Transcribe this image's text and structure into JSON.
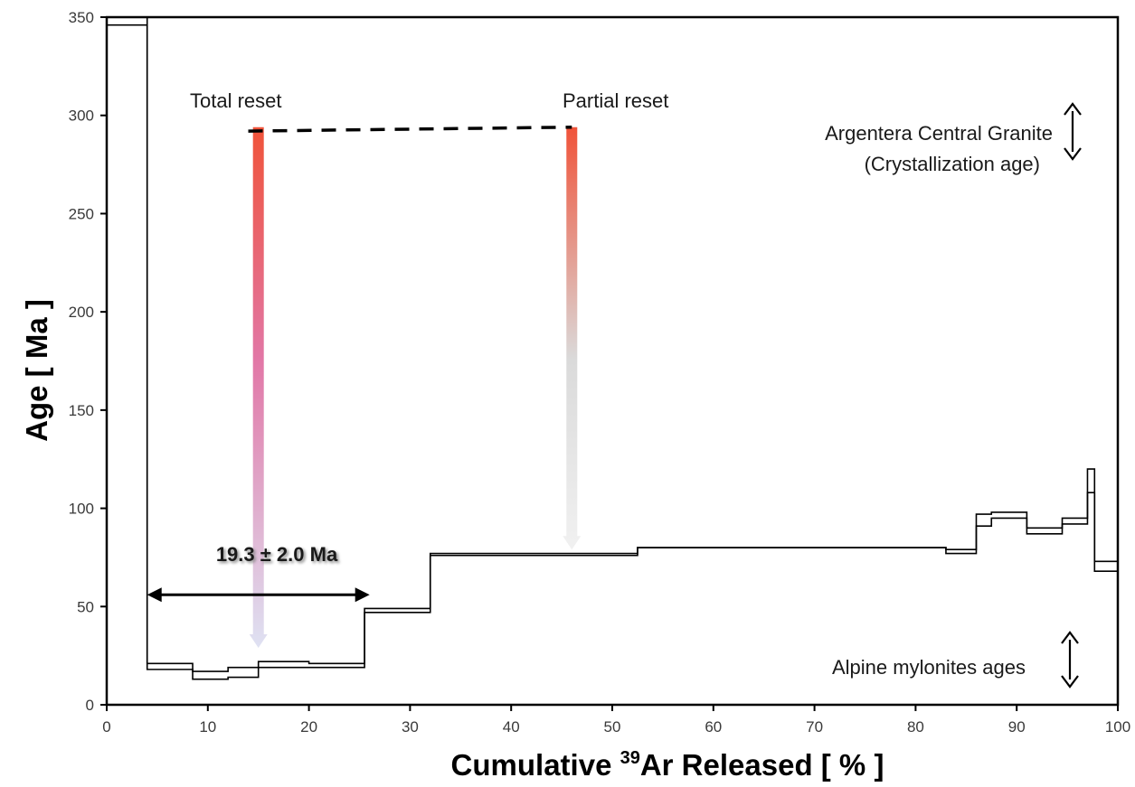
{
  "chart_data": {
    "type": "line",
    "subtype": "step-spectrum",
    "xlabel": {
      "pre": "Cumulative ",
      "sup": "39",
      "post": "Ar Released [ % ]"
    },
    "ylabel": "Age [ Ma ]",
    "xlim": [
      0,
      100
    ],
    "ylim": [
      0,
      350
    ],
    "xticks": [
      "0",
      "10",
      "20",
      "30",
      "40",
      "50",
      "60",
      "70",
      "80",
      "90",
      "100"
    ],
    "yticks": [
      "0",
      "50",
      "100",
      "150",
      "200",
      "250",
      "300",
      "350"
    ],
    "grid": false,
    "steps": [
      {
        "x0": 0,
        "x1": 4,
        "lo": 346,
        "hi": 350
      },
      {
        "x0": 4,
        "x1": 8.5,
        "lo": 18,
        "hi": 21
      },
      {
        "x0": 8.5,
        "x1": 12,
        "lo": 13,
        "hi": 17
      },
      {
        "x0": 12,
        "x1": 15,
        "lo": 14,
        "hi": 19
      },
      {
        "x0": 15,
        "x1": 20,
        "lo": 19,
        "hi": 22
      },
      {
        "x0": 20,
        "x1": 25.5,
        "lo": 19,
        "hi": 21
      },
      {
        "x0": 25.5,
        "x1": 32,
        "lo": 47,
        "hi": 49
      },
      {
        "x0": 32,
        "x1": 52.5,
        "lo": 76,
        "hi": 77
      },
      {
        "x0": 52.5,
        "x1": 83,
        "lo": 80,
        "hi": 80
      },
      {
        "x0": 83,
        "x1": 86,
        "lo": 77,
        "hi": 79
      },
      {
        "x0": 86,
        "x1": 87.5,
        "lo": 91,
        "hi": 97
      },
      {
        "x0": 87.5,
        "x1": 91,
        "lo": 95,
        "hi": 98
      },
      {
        "x0": 91,
        "x1": 94.5,
        "lo": 87,
        "hi": 90
      },
      {
        "x0": 94.5,
        "x1": 97,
        "lo": 92,
        "hi": 95
      },
      {
        "x0": 97,
        "x1": 97.7,
        "lo": 108,
        "hi": 120
      },
      {
        "x0": 97.7,
        "x1": 100,
        "lo": 68,
        "hi": 73
      }
    ],
    "annotations": {
      "total_reset": "Total reset",
      "partial_reset": "Partial reset",
      "granite_line1": "Argentera Central Granite",
      "granite_line2": "(Crystallization age)",
      "alpine": "Alpine mylonites ages",
      "plateau_age": "19.3 ± 2.0 Ma"
    },
    "reset_arrows": [
      {
        "x": 15,
        "top": 294,
        "bottom": 29
      },
      {
        "x": 46,
        "top": 294,
        "bottom": 79
      }
    ],
    "plateau_range": [
      4,
      26
    ],
    "plateau_arrow_y": 56,
    "dashed_line": {
      "x0": 14,
      "y0": 292,
      "x1": 46,
      "y1": 294
    },
    "colors": {
      "line": "#000000",
      "reset_top": "#ef4a2f",
      "reset_mid_total": "#e070a2",
      "reset_bottom_total": "#dde0f2",
      "reset_mid_partial": "#d8d8d8",
      "reset_bottom_partial": "#f0f0f0"
    }
  }
}
